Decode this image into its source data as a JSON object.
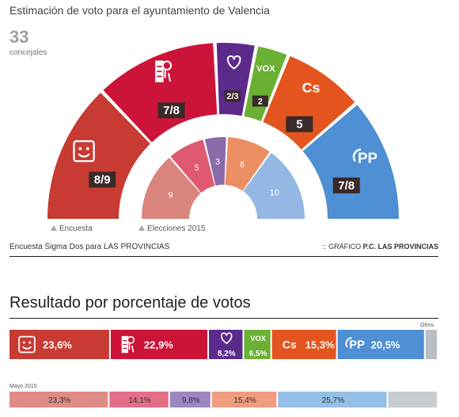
{
  "header": {
    "title": "Estimación de voto para el ayuntamiento de Valencia",
    "seats_total": "33",
    "seats_label": "concejales"
  },
  "legend": {
    "encuesta": "Encuesta",
    "elecciones": "Elecciones 2015"
  },
  "footer": {
    "source": "Encuesta Sigma Dos para LAS PROVINCIAS",
    "credit_prefix": ":: GRÁFICO ",
    "credit_brand": "P.C. LAS PROVINCIAS"
  },
  "section_title": "Resultado por porcentaje de votos",
  "bar_labels": {
    "otros": "Otros",
    "mayo_2015": "Mayo 2015"
  },
  "colors": {
    "compromis": "#c73b33",
    "psoe": "#cc1438",
    "podemos": "#5c2a8a",
    "vox": "#6ab033",
    "cs": "#e3541e",
    "pp": "#4f8fd3",
    "otros": "#b9bec4"
  },
  "chart_data": [
    {
      "type": "pie",
      "title": "Estimación de voto para el ayuntamiento de Valencia",
      "subtitle": "33 concejales",
      "series": [
        {
          "name": "Encuesta",
          "categories": [
            "Compromís",
            "PSOE",
            "Podemos",
            "Vox",
            "Cs",
            "PP"
          ],
          "values": [
            8.5,
            7.5,
            2.5,
            2,
            5,
            7.5
          ],
          "labels": [
            "8/9",
            "7/8",
            "2/3",
            "2",
            "5",
            "7/8"
          ],
          "icons": [
            "compromis-icon",
            "psoe-icon",
            "podemos-icon",
            "vox-icon",
            "cs-icon",
            "pp-icon"
          ],
          "colors": [
            "#c73b33",
            "#cc1438",
            "#5c2a8a",
            "#6ab033",
            "#e3541e",
            "#4f8fd3"
          ]
        },
        {
          "name": "Elecciones 2015",
          "categories": [
            "Compromís",
            "PSOE",
            "Podemos",
            "Cs",
            "PP"
          ],
          "values": [
            9,
            5,
            3,
            6,
            10
          ],
          "labels": [
            "9",
            "5",
            "3",
            "6",
            "10"
          ],
          "colors": [
            "#d9847c",
            "#df5a70",
            "#8b6aaa",
            "#eb8f63",
            "#94b8e3"
          ]
        }
      ]
    },
    {
      "type": "bar",
      "title": "Resultado por porcentaje de votos",
      "series": [
        {
          "name": "Encuesta",
          "categories": [
            "Compromís",
            "PSOE",
            "Podemos",
            "Vox",
            "Cs",
            "PP",
            "Otros"
          ],
          "values": [
            23.6,
            22.9,
            8.2,
            6.5,
            15.3,
            20.5,
            3.0
          ],
          "labels": [
            "23,6%",
            "22,9%",
            "8,2%",
            "6,5%",
            "15,3%",
            "20,5%",
            ""
          ],
          "icons": [
            "compromis-icon",
            "psoe-icon",
            "podemos-icon",
            "vox-icon",
            "cs-icon",
            "pp-icon",
            ""
          ],
          "colors": [
            "#c73b33",
            "#cc1438",
            "#5c2a8a",
            "#6ab033",
            "#e3541e",
            "#4f8fd3",
            "#b9bec4"
          ]
        },
        {
          "name": "Mayo 2015",
          "categories": [
            "Compromís",
            "PSOE",
            "Podemos",
            "Cs",
            "PP",
            "Otros"
          ],
          "values": [
            23.3,
            14.1,
            9.8,
            15.4,
            25.7,
            11.7
          ],
          "labels": [
            "23,3%",
            "14,1%",
            "9,8%",
            "15,4%",
            "25,7%",
            ""
          ],
          "colors": [
            "#e08c86",
            "#e36e86",
            "#9e86c1",
            "#f09c80",
            "#96bfe6",
            "#c8cdd2"
          ]
        }
      ]
    }
  ]
}
